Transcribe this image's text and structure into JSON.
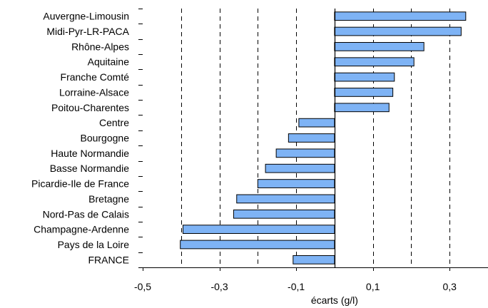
{
  "chart_data": {
    "type": "bar",
    "orientation": "horizontal",
    "categories": [
      "Auvergne-Limousin",
      "Midi-Pyr-LR-PACA",
      "Rhône-Alpes",
      "Aquitaine",
      "Franche Comté",
      "Lorraine-Alsace",
      "Poitou-Charentes",
      "Centre",
      "Bourgogne",
      "Haute Normandie",
      "Basse Normandie",
      "Picardie-Ile de France",
      "Bretagne",
      "Nord-Pas de Calais",
      "Champagne-Ardenne",
      "Pays de la Loire",
      "FRANCE"
    ],
    "values": [
      0.342,
      0.33,
      0.233,
      0.207,
      0.156,
      0.152,
      0.142,
      -0.093,
      -0.12,
      -0.152,
      -0.18,
      -0.2,
      -0.255,
      -0.263,
      -0.395,
      -0.402,
      -0.108
    ],
    "title": "",
    "xlabel": "écarts (g/l)",
    "ylabel": "",
    "xlim": [
      -0.5,
      0.4
    ],
    "xticks": [
      -0.5,
      -0.3,
      -0.1,
      0.1,
      0.3
    ],
    "xtick_labels": [
      "-0,5",
      "-0,3",
      "-0,1",
      "0,1",
      "0,3"
    ],
    "grid_lines_x": [
      -0.4,
      -0.3,
      -0.2,
      -0.1,
      0.1,
      0.2,
      0.3
    ],
    "grid": "vertical dashed",
    "bar_color": "#7EB3F5",
    "bar_edge_color": "#000000"
  }
}
